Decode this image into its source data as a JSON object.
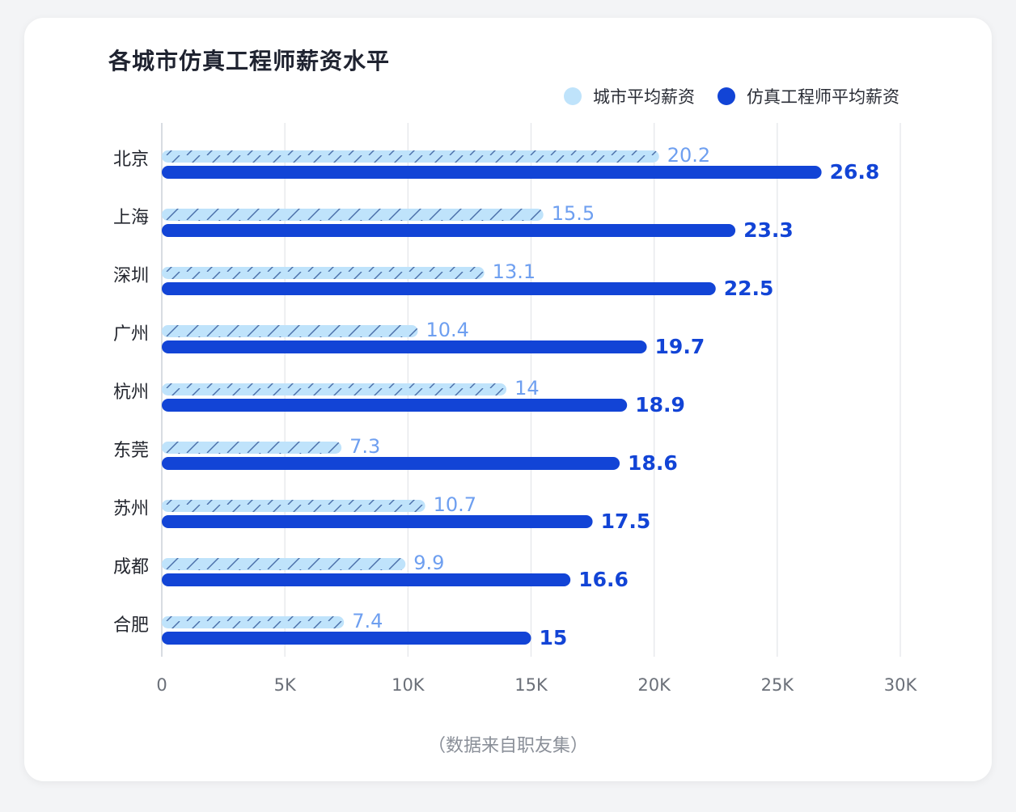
{
  "title": "各城市仿真工程师薪资水平",
  "footnote": "（数据来自职友集）",
  "colors": {
    "city": "#bfe3fb",
    "engineer": "#1244d6",
    "city_label": "#6e9ff0",
    "hatch": "#4a6ea8"
  },
  "chart_data": {
    "type": "bar",
    "orientation": "horizontal",
    "title": "各城市仿真工程师薪资水平",
    "categories": [
      "北京",
      "上海",
      "深圳",
      "广州",
      "杭州",
      "东莞",
      "苏州",
      "成都",
      "合肥"
    ],
    "series": [
      {
        "name": "城市平均薪资",
        "values": [
          20.2,
          15.5,
          13.1,
          10.4,
          14,
          7.3,
          10.7,
          9.9,
          7.4
        ]
      },
      {
        "name": "仿真工程师平均薪资",
        "values": [
          26.8,
          23.3,
          22.5,
          19.7,
          18.9,
          18.6,
          17.5,
          16.6,
          15
        ]
      }
    ],
    "xlim": [
      0,
      30
    ],
    "xticks": [
      "0",
      "5K",
      "10K",
      "15K",
      "20K",
      "25K",
      "30K"
    ],
    "grid": true,
    "legend": "top-right"
  }
}
